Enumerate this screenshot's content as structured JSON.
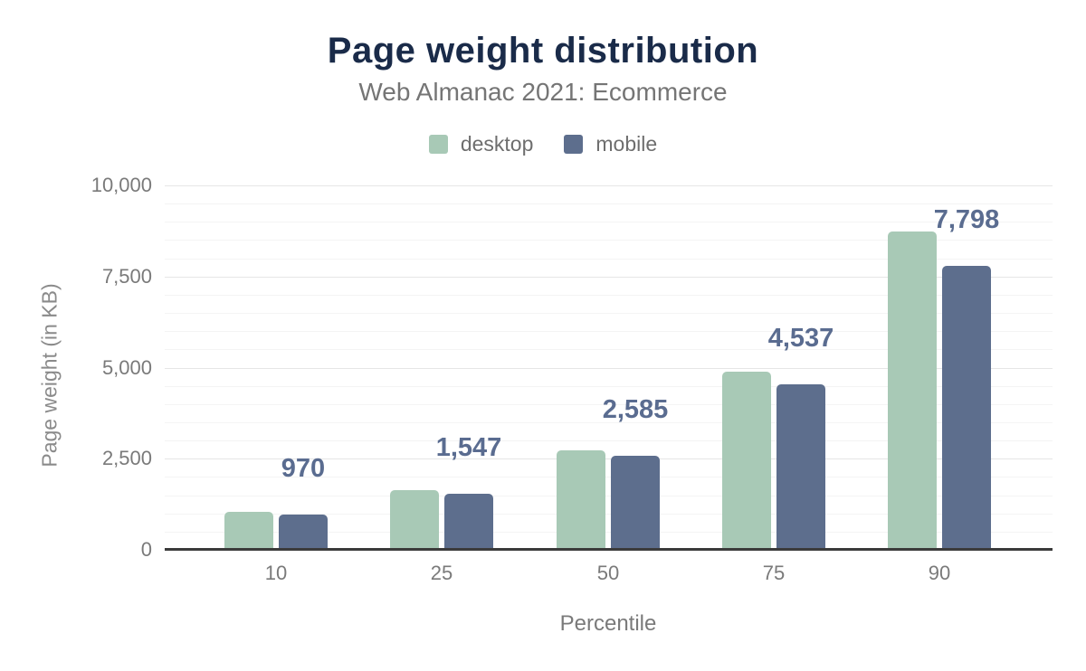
{
  "chart_data": {
    "type": "bar",
    "title": "Page weight distribution",
    "subtitle": "Web Almanac 2021: Ecommerce",
    "xlabel": "Percentile",
    "ylabel": "Page weight (in KB)",
    "categories": [
      "10",
      "25",
      "50",
      "75",
      "90"
    ],
    "series": [
      {
        "name": "desktop",
        "color": "#a8c9b6",
        "values": [
          1040,
          1640,
          2730,
          4900,
          8740
        ]
      },
      {
        "name": "mobile",
        "color": "#5d6e8d",
        "values": [
          970,
          1547,
          2585,
          4537,
          7798
        ],
        "data_labels": [
          "970",
          "1,547",
          "2,585",
          "4,537",
          "7,798"
        ]
      }
    ],
    "ylim": [
      0,
      10000
    ],
    "yticks": [
      {
        "value": 0,
        "label": "0"
      },
      {
        "value": 2500,
        "label": "2,500"
      },
      {
        "value": 5000,
        "label": "5,000"
      },
      {
        "value": 7500,
        "label": "7,500"
      },
      {
        "value": 10000,
        "label": "10,000"
      }
    ],
    "grid": {
      "minor_step": 500,
      "major_step": 2500,
      "minor_color": "#f4f4f4",
      "major_color": "#e6e6e6"
    },
    "legend_position": "top",
    "colors": {
      "title": "#1a2b49",
      "subtitle": "#757575",
      "axis_text": "#7a7a7a",
      "axis_title": "#8a8a8a",
      "value_label": "#5a6c90",
      "baseline": "#3b3b3b",
      "background": "#ffffff"
    }
  }
}
